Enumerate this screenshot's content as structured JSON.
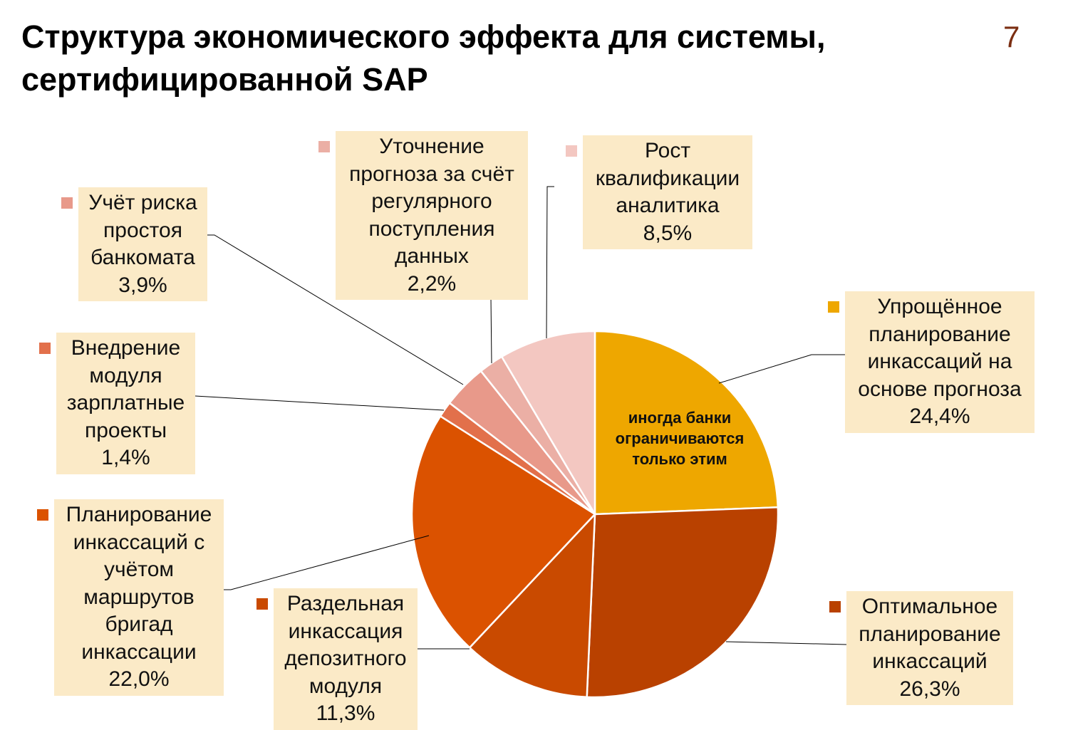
{
  "title_lines": [
    "Структура экономического эффекта для системы,",
    "сертифицированной SAP"
  ],
  "page_number": "7",
  "inner_note_lines": [
    "иногда банки",
    "ограничиваются",
    "только этим"
  ],
  "chart_data": {
    "type": "pie",
    "start_angle": "12 o'clock",
    "direction": "clockwise",
    "slices": [
      {
        "name_lines": [
          "Упрощённое",
          "планирование",
          "инкассаций на",
          "основе прогноза"
        ],
        "value": 24.4,
        "value_label": "24,4%",
        "color": "#eea700"
      },
      {
        "name_lines": [
          "Оптимальное",
          "планирование",
          "инкассаций"
        ],
        "value": 26.3,
        "value_label": "26,3%",
        "color": "#b94100"
      },
      {
        "name_lines": [
          "Раздельная",
          "инкассация",
          "депозитного",
          "модуля"
        ],
        "value": 11.3,
        "value_label": "11,3%",
        "color": "#c94a00"
      },
      {
        "name_lines": [
          "Планирование",
          "инкассаций с",
          "учётом",
          "маршрутов",
          "бригад",
          "инкассации"
        ],
        "value": 22.0,
        "value_label": "22,0%",
        "color": "#db5200"
      },
      {
        "name_lines": [
          "Внедрение",
          "модуля",
          "зарплатные",
          "проекты"
        ],
        "value": 1.4,
        "value_label": "1,4%",
        "color": "#e2704b"
      },
      {
        "name_lines": [
          "Учёт риска",
          "простоя",
          "банкомата"
        ],
        "value": 3.9,
        "value_label": "3,9%",
        "color": "#e8998a"
      },
      {
        "name_lines": [
          "Уточнение",
          "прогноза за счёт",
          "регулярного",
          "поступления",
          "данных"
        ],
        "value": 2.2,
        "value_label": "2,2%",
        "color": "#ebafa5"
      },
      {
        "name_lines": [
          "Рост",
          "квалификации",
          "аналитика"
        ],
        "value": 8.5,
        "value_label": "8,5%",
        "color": "#f3c7c1"
      }
    ]
  }
}
